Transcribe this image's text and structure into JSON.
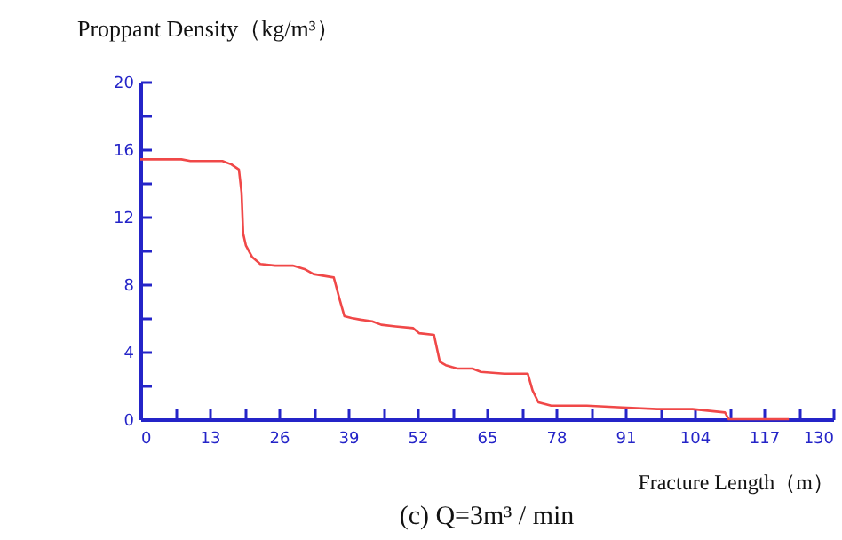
{
  "chart_data": {
    "type": "line",
    "xlabel": "Fracture Length（m）",
    "ylabel": "Proppant Density（kg/m³）",
    "annotations": [
      "(c) Q=3m³ / min"
    ],
    "x": [
      0,
      7.7,
      9.4,
      15.4,
      17.1,
      18.5,
      19,
      19.3,
      19.8,
      21,
      22.5,
      25.3,
      28.6,
      30.8,
      32.5,
      36.3,
      37.4,
      38.3,
      39.6,
      41.3,
      43.5,
      45.2,
      47.9,
      51.2,
      52.3,
      55.1,
      56.2,
      57.3,
      59.5,
      62.3,
      63.9,
      68.3,
      72.7,
      73.6,
      74.7,
      77.1,
      83.8,
      90.4,
      97,
      103.6,
      109.7,
      110.4,
      121.7
    ],
    "series": [
      {
        "color": "#f04848",
        "values": [
          15.4,
          15.4,
          15.3,
          15.3,
          15.1,
          14.8,
          13.4,
          11.0,
          10.3,
          9.6,
          9.2,
          9.1,
          9.1,
          8.9,
          8.6,
          8.4,
          7.1,
          6.1,
          6.0,
          5.9,
          5.8,
          5.6,
          5.5,
          5.4,
          5.1,
          5.0,
          3.4,
          3.2,
          3.0,
          3.0,
          2.8,
          2.7,
          2.7,
          1.7,
          1.0,
          0.8,
          0.8,
          0.7,
          0.6,
          0.6,
          0.4,
          0,
          0
        ]
      }
    ],
    "xlim": [
      0,
      130
    ],
    "xticks": [
      0,
      {
        "value": 6.5,
        "label": null
      },
      13,
      {
        "value": 19.5,
        "label": null
      },
      26,
      {
        "value": 32.5,
        "label": null
      },
      39,
      {
        "value": 45.5,
        "label": null
      },
      52,
      {
        "value": 58.5,
        "label": null
      },
      65,
      {
        "value": 71.5,
        "label": null
      },
      78,
      {
        "value": 84.5,
        "label": null
      },
      91,
      {
        "value": 97.5,
        "label": null
      },
      104,
      {
        "value": 110.5,
        "label": null
      },
      117,
      {
        "value": 123.5,
        "label": null
      },
      130
    ],
    "ylim": [
      0,
      20
    ],
    "yticks": [
      0,
      {
        "value": 2,
        "label": null
      },
      4,
      {
        "value": 6,
        "label": null
      },
      8,
      {
        "value": 10,
        "label": null
      },
      12,
      {
        "value": 14,
        "label": null
      },
      16,
      {
        "value": 18,
        "label": null
      },
      20
    ],
    "grid": false,
    "legend": false,
    "marker": "none",
    "line_style": "solid"
  }
}
